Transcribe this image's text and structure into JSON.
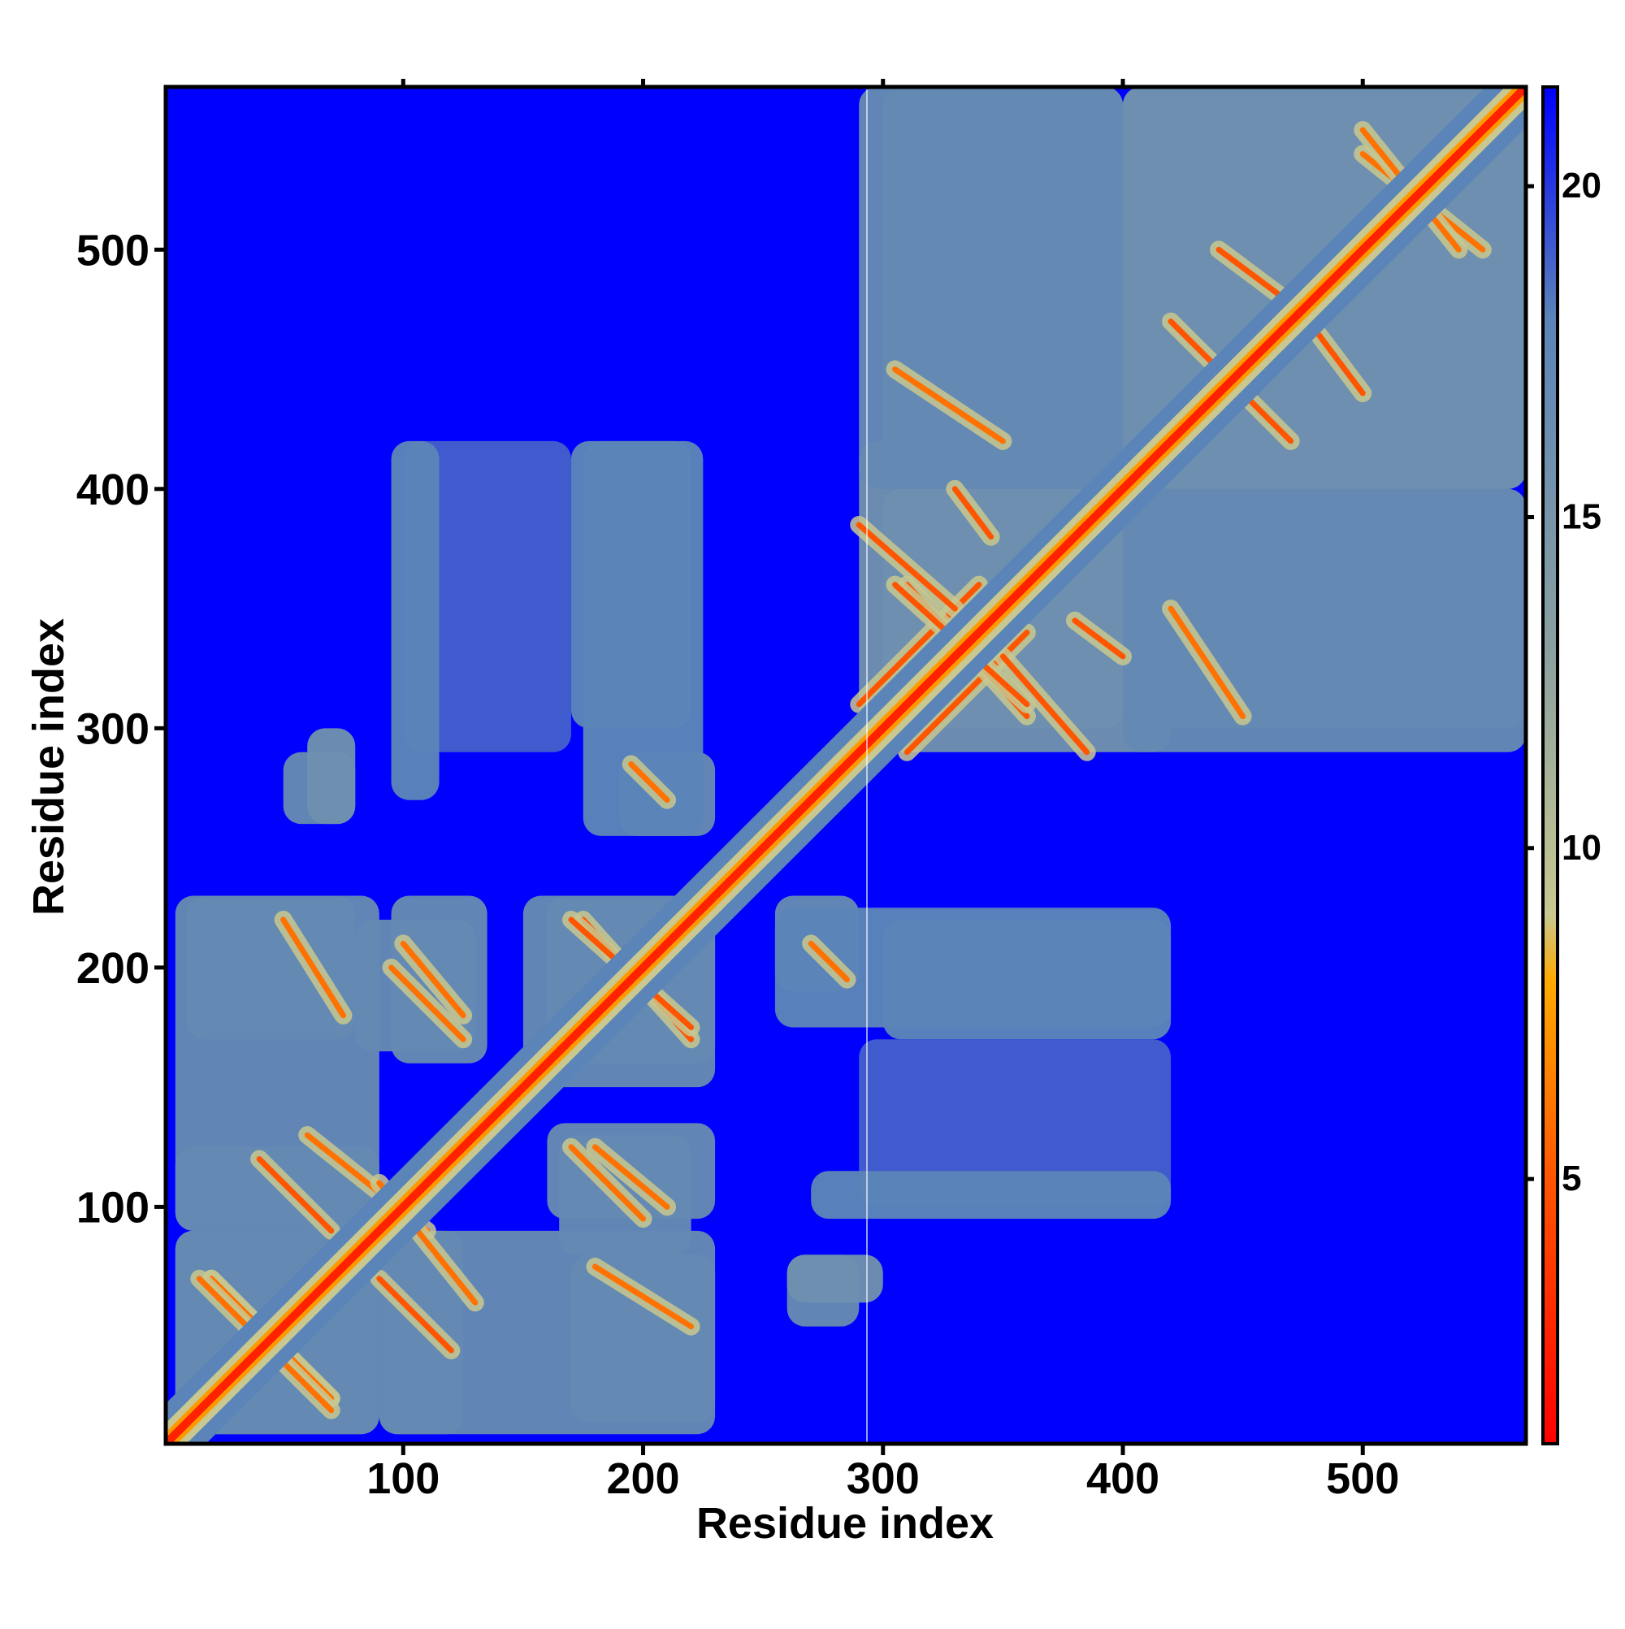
{
  "chart_data": {
    "type": "heatmap",
    "title": "",
    "xlabel": "Residue index",
    "ylabel": "Residue index",
    "xlim": [
      1,
      568
    ],
    "ylim": [
      1,
      568
    ],
    "x_ticks": [
      {
        "value": 100,
        "label": "100"
      },
      {
        "value": 200,
        "label": "200"
      },
      {
        "value": 300,
        "label": "300"
      },
      {
        "value": 400,
        "label": "400"
      },
      {
        "value": 500,
        "label": "500"
      }
    ],
    "y_ticks": [
      {
        "value": 100,
        "label": "100"
      },
      {
        "value": 200,
        "label": "200"
      },
      {
        "value": 300,
        "label": "300"
      },
      {
        "value": 400,
        "label": "400"
      },
      {
        "value": 500,
        "label": "500"
      }
    ],
    "colorbar": {
      "range": [
        1,
        21.5
      ],
      "ticks": [
        {
          "value": 5,
          "label": "5"
        },
        {
          "value": 10,
          "label": "10"
        },
        {
          "value": 15,
          "label": "15"
        },
        {
          "value": 20,
          "label": "20"
        }
      ],
      "color_stops": [
        {
          "value": 1,
          "color": "#ff0000"
        },
        {
          "value": 5,
          "color": "#ff5500"
        },
        {
          "value": 8,
          "color": "#ffaa00"
        },
        {
          "value": 9,
          "color": "#c8c890"
        },
        {
          "value": 13,
          "color": "#8aa0a0"
        },
        {
          "value": 18,
          "color": "#5b84b8"
        },
        {
          "value": 21.5,
          "color": "#0000ff"
        }
      ]
    },
    "colors": {
      "background": "#0000ff",
      "medium": "#5b84b8",
      "close": "#c8c890",
      "contact": "#ff9900",
      "diagonal": "#ff2200"
    },
    "regions": [
      {
        "x": [
          5,
          90
        ],
        "y": [
          5,
          90
        ],
        "value": 17
      },
      {
        "x": [
          90,
          125
        ],
        "y": [
          5,
          90
        ],
        "value": 17
      },
      {
        "x": [
          5,
          90
        ],
        "y": [
          90,
          230
        ],
        "value": 17
      },
      {
        "x": [
          95,
          135
        ],
        "y": [
          160,
          230
        ],
        "value": 17
      },
      {
        "x": [
          160,
          230
        ],
        "y": [
          150,
          230
        ],
        "value": 17
      },
      {
        "x": [
          165,
          220
        ],
        "y": [
          80,
          130
        ],
        "value": 17
      },
      {
        "x": [
          170,
          230
        ],
        "y": [
          10,
          80
        ],
        "value": 17
      },
      {
        "x": [
          260,
          290
        ],
        "y": [
          50,
          80
        ],
        "value": 17
      },
      {
        "x": [
          255,
          290
        ],
        "y": [
          190,
          230
        ],
        "value": 17
      },
      {
        "x": [
          300,
          420
        ],
        "y": [
          170,
          220
        ],
        "value": 18
      },
      {
        "x": [
          290,
          420
        ],
        "y": [
          100,
          170
        ],
        "value": 19
      },
      {
        "x": [
          300,
          420
        ],
        "y": [
          290,
          400
        ],
        "value": 16
      },
      {
        "x": [
          400,
          568
        ],
        "y": [
          290,
          400
        ],
        "value": 17
      },
      {
        "x": [
          300,
          400
        ],
        "y": [
          400,
          568
        ],
        "value": 17
      },
      {
        "x": [
          400,
          568
        ],
        "y": [
          400,
          568
        ],
        "value": 16
      },
      {
        "x": [
          60,
          80
        ],
        "y": [
          260,
          300
        ],
        "value": 16
      },
      {
        "x": [
          95,
          115
        ],
        "y": [
          270,
          420
        ],
        "value": 18
      },
      {
        "x": [
          175,
          225
        ],
        "y": [
          255,
          420
        ],
        "value": 18
      }
    ],
    "contacts": [
      {
        "from": [
          20,
          70
        ],
        "to": [
          70,
          20
        ],
        "value": 9
      },
      {
        "from": [
          60,
          130
        ],
        "to": [
          110,
          90
        ],
        "value": 9
      },
      {
        "from": [
          50,
          220
        ],
        "to": [
          75,
          180
        ],
        "value": 9
      },
      {
        "from": [
          100,
          210
        ],
        "to": [
          125,
          180
        ],
        "value": 9
      },
      {
        "from": [
          175,
          220
        ],
        "to": [
          220,
          170
        ],
        "value": 8
      },
      {
        "from": [
          170,
          125
        ],
        "to": [
          200,
          95
        ],
        "value": 9
      },
      {
        "from": [
          90,
          70
        ],
        "to": [
          120,
          40
        ],
        "value": 8
      },
      {
        "from": [
          40,
          45
        ],
        "to": [
          70,
          15
        ],
        "value": 9
      },
      {
        "from": [
          270,
          210
        ],
        "to": [
          285,
          195
        ],
        "value": 9
      },
      {
        "from": [
          310,
          290
        ],
        "to": [
          360,
          340
        ],
        "value": 8
      },
      {
        "from": [
          310,
          360
        ],
        "to": [
          360,
          305
        ],
        "value": 8
      },
      {
        "from": [
          330,
          400
        ],
        "to": [
          345,
          380
        ],
        "value": 8
      },
      {
        "from": [
          350,
          330
        ],
        "to": [
          385,
          290
        ],
        "value": 8
      },
      {
        "from": [
          420,
          350
        ],
        "to": [
          450,
          305
        ],
        "value": 9
      },
      {
        "from": [
          440,
          450
        ],
        "to": [
          470,
          420
        ],
        "value": 8
      },
      {
        "from": [
          490,
          480
        ],
        "to": [
          530,
          520
        ],
        "value": 8
      },
      {
        "from": [
          500,
          540
        ],
        "to": [
          550,
          500
        ],
        "value": 9
      },
      {
        "from": [
          440,
          500
        ],
        "to": [
          480,
          470
        ],
        "value": 8
      }
    ]
  }
}
